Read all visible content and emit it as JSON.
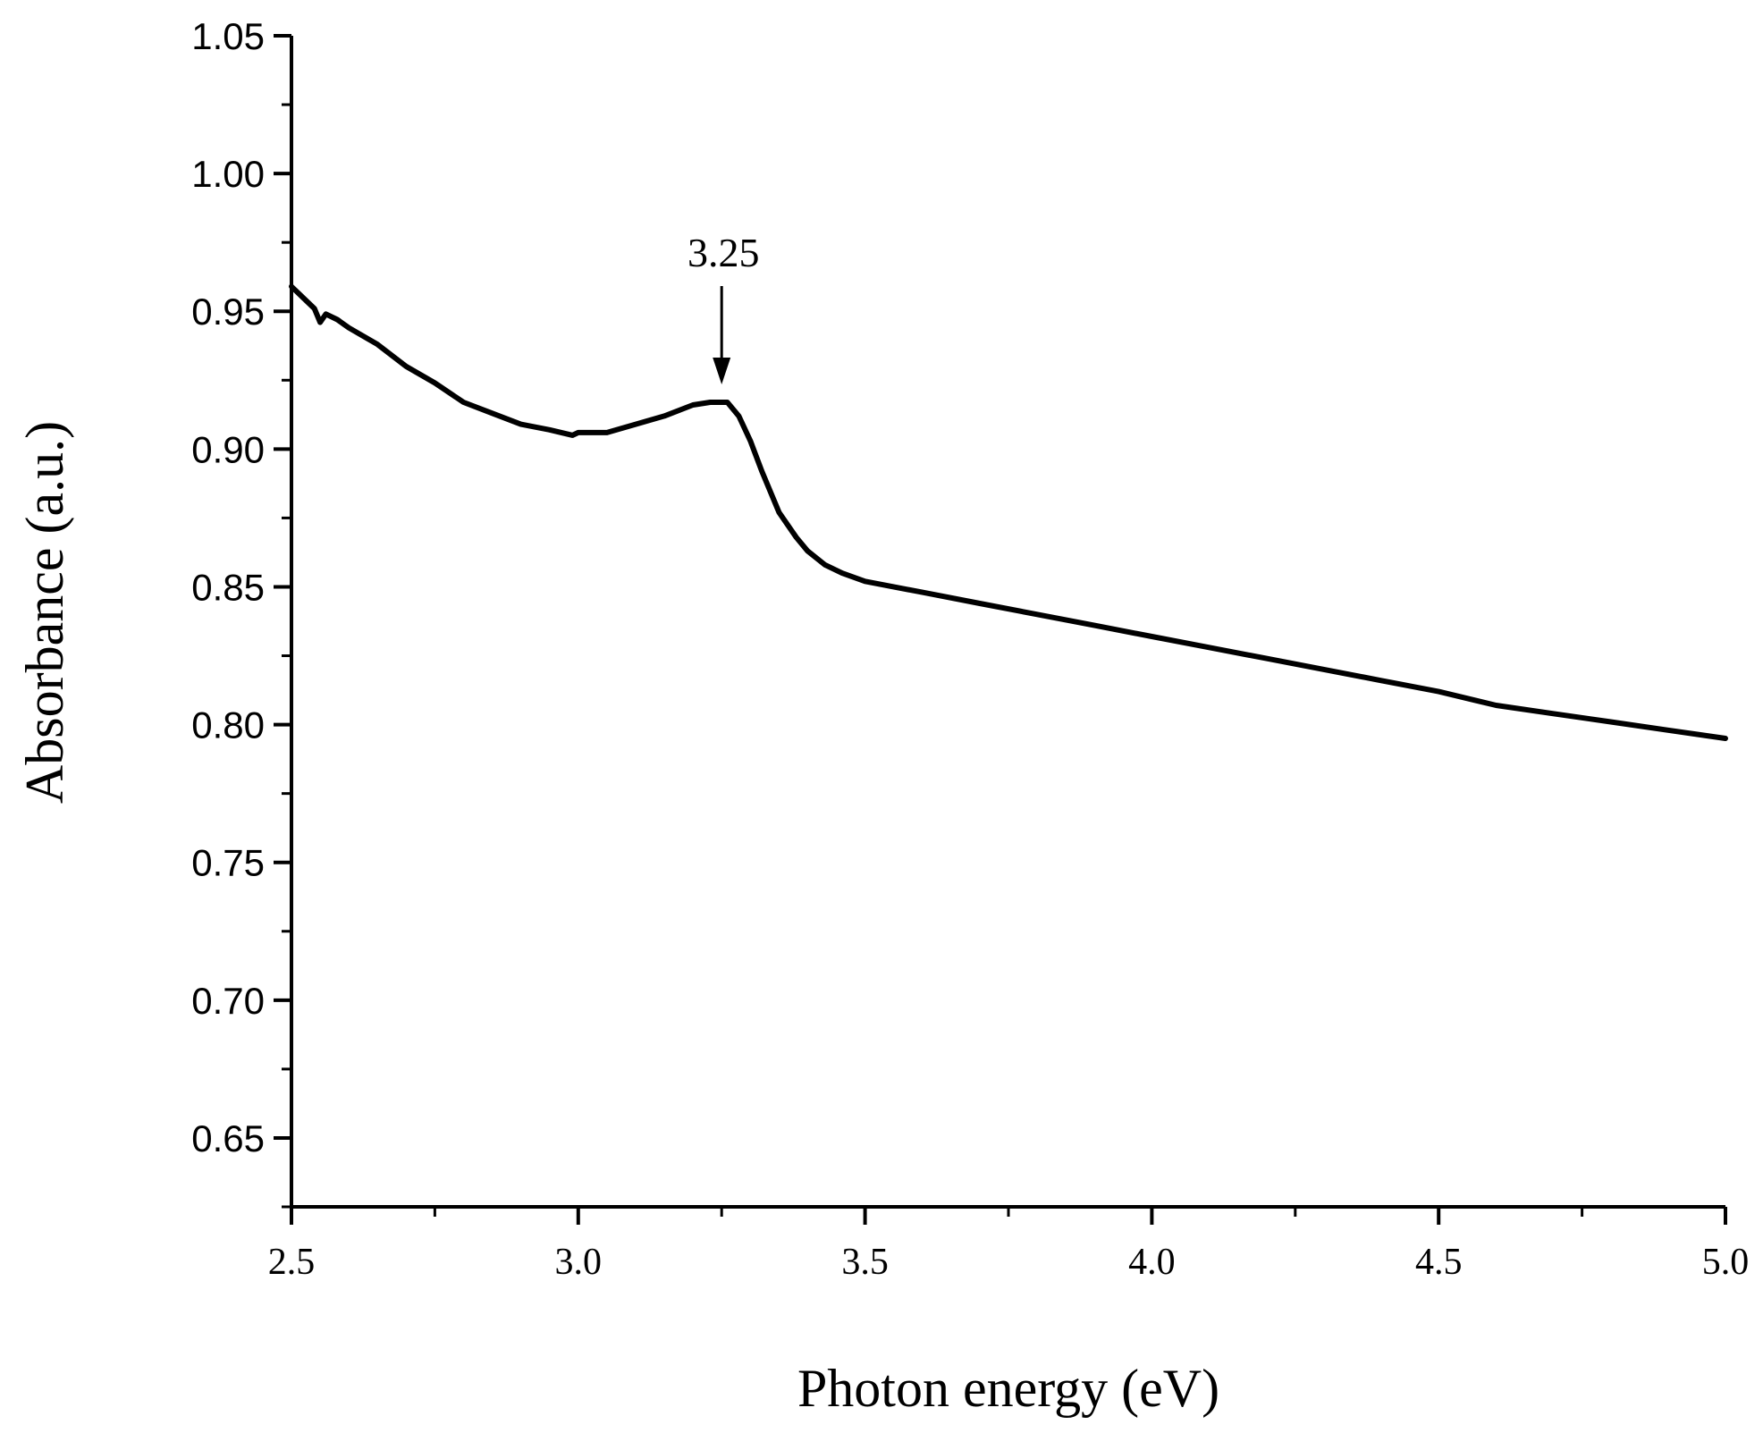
{
  "chart_data": {
    "type": "line",
    "title": "",
    "xlabel": "Photon energy (eV)",
    "ylabel": "Absorbance (a.u.)",
    "xlim": [
      2.5,
      5.0
    ],
    "ylim": [
      0.625,
      1.05
    ],
    "xticks": [
      2.5,
      3.0,
      3.5,
      4.0,
      4.5,
      5.0
    ],
    "xtick_labels": [
      "2.5",
      "3.0",
      "3.5",
      "4.0",
      "4.5",
      "5.0"
    ],
    "yticks": [
      0.65,
      0.7,
      0.75,
      0.8,
      0.85,
      0.9,
      0.95,
      1.0,
      1.05
    ],
    "ytick_labels": [
      "0.65",
      "0.70",
      "0.75",
      "0.80",
      "0.85",
      "0.90",
      "0.95",
      "1.00",
      "1.05"
    ],
    "grid": false,
    "series": [
      {
        "name": "Absorbance",
        "color": "#000000",
        "x": [
          2.5,
          2.52,
          2.54,
          2.55,
          2.56,
          2.58,
          2.6,
          2.65,
          2.7,
          2.75,
          2.8,
          2.85,
          2.9,
          2.95,
          2.99,
          3.0,
          3.05,
          3.1,
          3.15,
          3.2,
          3.23,
          3.26,
          3.28,
          3.3,
          3.32,
          3.35,
          3.38,
          3.4,
          3.43,
          3.46,
          3.5,
          3.6,
          3.7,
          3.8,
          3.9,
          4.0,
          4.1,
          4.2,
          4.3,
          4.4,
          4.45,
          4.5,
          4.6,
          4.7,
          4.8,
          4.9,
          5.0
        ],
        "y": [
          0.959,
          0.955,
          0.951,
          0.946,
          0.949,
          0.947,
          0.944,
          0.938,
          0.93,
          0.924,
          0.917,
          0.913,
          0.909,
          0.907,
          0.905,
          0.906,
          0.906,
          0.909,
          0.912,
          0.916,
          0.917,
          0.917,
          0.912,
          0.903,
          0.892,
          0.877,
          0.868,
          0.863,
          0.858,
          0.855,
          0.852,
          0.848,
          0.844,
          0.84,
          0.836,
          0.832,
          0.828,
          0.824,
          0.82,
          0.816,
          0.814,
          0.812,
          0.807,
          0.804,
          0.801,
          0.798,
          0.795
        ]
      }
    ],
    "annotations": [
      {
        "text": "3.25",
        "x": 3.25,
        "y": 0.917,
        "arrow": "down"
      }
    ]
  }
}
